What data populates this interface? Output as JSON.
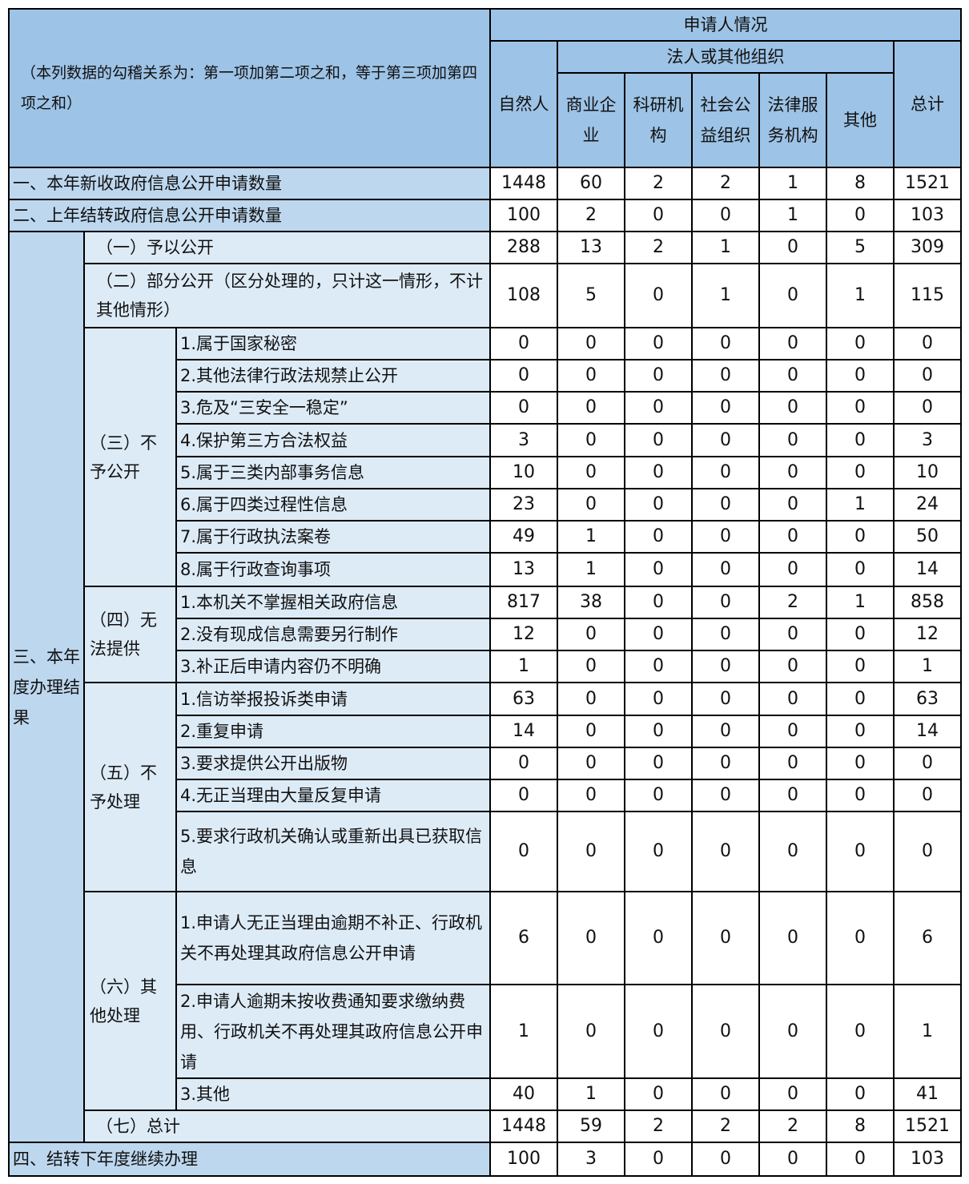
{
  "header": {
    "note": "（本列数据的勾稽关系为：第一项加第二项之和，等于第三项加第四项之和）",
    "applicant": "申请人情况",
    "natural": "自然人",
    "legal": "法人或其他组织",
    "cols": [
      "商业企业",
      "科研机构",
      "社会公益组织",
      "法律服务机构",
      "其他"
    ],
    "total": "总计"
  },
  "rows": [
    {
      "label": "一、本年新收政府信息公开申请数量",
      "values": [
        1448,
        60,
        2,
        2,
        1,
        8,
        1521
      ]
    },
    {
      "label": "二、上年结转政府信息公开申请数量",
      "values": [
        100,
        2,
        0,
        0,
        1,
        0,
        103
      ]
    }
  ],
  "result": {
    "label": "三、本年度办理结果",
    "open": {
      "label": "（一）予以公开",
      "values": [
        288,
        13,
        2,
        1,
        0,
        5,
        309
      ]
    },
    "partial": {
      "label": "（二）部分公开（区分处理的，只计这一情形，不计其他情形）",
      "values": [
        108,
        5,
        0,
        1,
        0,
        1,
        115
      ]
    },
    "groups": [
      {
        "label": "（三）不予公开",
        "items": [
          {
            "label": "1.属于国家秘密",
            "values": [
              0,
              0,
              0,
              0,
              0,
              0,
              0
            ]
          },
          {
            "label": "2.其他法律行政法规禁止公开",
            "values": [
              0,
              0,
              0,
              0,
              0,
              0,
              0
            ]
          },
          {
            "label": "3.危及“三安全一稳定”",
            "values": [
              0,
              0,
              0,
              0,
              0,
              0,
              0
            ]
          },
          {
            "label": "4.保护第三方合法权益",
            "values": [
              3,
              0,
              0,
              0,
              0,
              0,
              3
            ]
          },
          {
            "label": "5.属于三类内部事务信息",
            "values": [
              10,
              0,
              0,
              0,
              0,
              0,
              10
            ]
          },
          {
            "label": "6.属于四类过程性信息",
            "values": [
              23,
              0,
              0,
              0,
              0,
              1,
              24
            ]
          },
          {
            "label": "7.属于行政执法案卷",
            "values": [
              49,
              1,
              0,
              0,
              0,
              0,
              50
            ]
          },
          {
            "label": "8.属于行政查询事项",
            "values": [
              13,
              1,
              0,
              0,
              0,
              0,
              14
            ]
          }
        ]
      },
      {
        "label": "（四）无法提供",
        "items": [
          {
            "label": "1.本机关不掌握相关政府信息",
            "values": [
              817,
              38,
              0,
              0,
              2,
              1,
              858
            ]
          },
          {
            "label": "2.没有现成信息需要另行制作",
            "values": [
              12,
              0,
              0,
              0,
              0,
              0,
              12
            ]
          },
          {
            "label": "3.补正后申请内容仍不明确",
            "values": [
              1,
              0,
              0,
              0,
              0,
              0,
              1
            ]
          }
        ]
      },
      {
        "label": "（五）不予处理",
        "items": [
          {
            "label": "1.信访举报投诉类申请",
            "values": [
              63,
              0,
              0,
              0,
              0,
              0,
              63
            ]
          },
          {
            "label": "2.重复申请",
            "values": [
              14,
              0,
              0,
              0,
              0,
              0,
              14
            ]
          },
          {
            "label": "3.要求提供公开出版物",
            "values": [
              0,
              0,
              0,
              0,
              0,
              0,
              0
            ]
          },
          {
            "label": "4.无正当理由大量反复申请",
            "values": [
              0,
              0,
              0,
              0,
              0,
              0,
              0
            ]
          },
          {
            "label": "5.要求行政机关确认或重新出具已获取信息",
            "values": [
              0,
              0,
              0,
              0,
              0,
              0,
              0
            ]
          }
        ]
      },
      {
        "label": "（六）其他处理",
        "items": [
          {
            "label": "1.申请人无正当理由逾期不补正、行政机关不再处理其政府信息公开申请",
            "values": [
              6,
              0,
              0,
              0,
              0,
              0,
              6
            ]
          },
          {
            "label": "2.申请人逾期未按收费通知要求缴纳费用、行政机关不再处理其政府信息公开申请",
            "values": [
              1,
              0,
              0,
              0,
              0,
              0,
              1
            ]
          },
          {
            "label": "3.其他",
            "values": [
              40,
              1,
              0,
              0,
              0,
              0,
              41
            ]
          }
        ]
      }
    ],
    "total": {
      "label": "（七）总计",
      "values": [
        1448,
        59,
        2,
        2,
        2,
        8,
        1521
      ]
    }
  },
  "carry": {
    "label": "四、结转下年度继续办理",
    "values": [
      100,
      3,
      0,
      0,
      0,
      0,
      103
    ]
  },
  "colors": {
    "header": "#9dc3e6",
    "level1": "#bdd7ee",
    "level2": "#ddebf7"
  }
}
